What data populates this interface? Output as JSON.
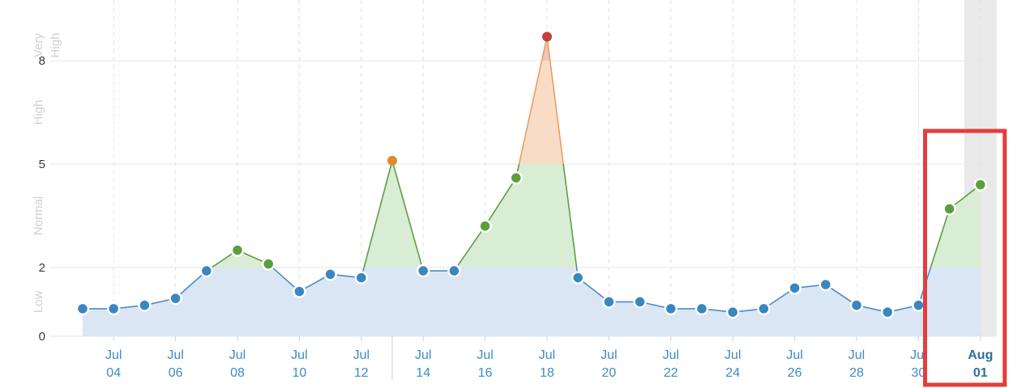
{
  "chart_data": {
    "type": "area",
    "title": "",
    "xlabel": "",
    "ylabel": "",
    "ylim": [
      0,
      9
    ],
    "yticks": [
      0,
      2,
      5,
      8
    ],
    "grid": true,
    "zones": [
      {
        "label": "Low",
        "from": 0,
        "to": 2,
        "color": "#dae6f4"
      },
      {
        "label": "Normal",
        "from": 2,
        "to": 5,
        "color": "#d9ecd4"
      },
      {
        "label": "High",
        "from": 5,
        "to": 8,
        "color": "#f8dcc6"
      },
      {
        "label": "Very High",
        "from": 8,
        "to": 9,
        "color": "#f0c2be"
      }
    ],
    "x": [
      "2021-07-03",
      "2021-07-04",
      "2021-07-05",
      "2021-07-06",
      "2021-07-07",
      "2021-07-08",
      "2021-07-09",
      "2021-07-10",
      "2021-07-11",
      "2021-07-12",
      "2021-07-13",
      "2021-07-14",
      "2021-07-15",
      "2021-07-16",
      "2021-07-17",
      "2021-07-18",
      "2021-07-19",
      "2021-07-20",
      "2021-07-21",
      "2021-07-22",
      "2021-07-23",
      "2021-07-24",
      "2021-07-25",
      "2021-07-26",
      "2021-07-27",
      "2021-07-28",
      "2021-07-29",
      "2021-07-30",
      "2021-07-31",
      "2021-08-01"
    ],
    "values": [
      0.8,
      0.8,
      0.9,
      1.1,
      1.9,
      2.5,
      2.1,
      1.3,
      1.8,
      1.7,
      5.1,
      1.9,
      1.9,
      3.2,
      4.6,
      8.7,
      1.7,
      1.0,
      1.0,
      0.8,
      0.8,
      0.7,
      0.8,
      1.4,
      1.5,
      0.9,
      0.7,
      0.9,
      3.7,
      4.4
    ],
    "xtick_labels": [
      {
        "date": "2021-07-04",
        "month": "Jul",
        "day": "04"
      },
      {
        "date": "2021-07-06",
        "month": "Jul",
        "day": "06"
      },
      {
        "date": "2021-07-08",
        "month": "Jul",
        "day": "08"
      },
      {
        "date": "2021-07-10",
        "month": "Jul",
        "day": "10"
      },
      {
        "date": "2021-07-12",
        "month": "Jul",
        "day": "12"
      },
      {
        "date": "2021-07-14",
        "month": "Jul",
        "day": "14"
      },
      {
        "date": "2021-07-16",
        "month": "Jul",
        "day": "16"
      },
      {
        "date": "2021-07-18",
        "month": "Jul",
        "day": "18"
      },
      {
        "date": "2021-07-20",
        "month": "Jul",
        "day": "20"
      },
      {
        "date": "2021-07-22",
        "month": "Jul",
        "day": "22"
      },
      {
        "date": "2021-07-24",
        "month": "Jul",
        "day": "24"
      },
      {
        "date": "2021-07-26",
        "month": "Jul",
        "day": "26"
      },
      {
        "date": "2021-07-28",
        "month": "Jul",
        "day": "28"
      },
      {
        "date": "2021-07-30",
        "month": "Jul",
        "day": "30"
      },
      {
        "date": "2021-08-01",
        "month": "Aug",
        "day": "01"
      }
    ],
    "highlighted_date": "2021-08-01",
    "highlight_start": "2021-07-31",
    "colors": {
      "low_point": "#3a86c0",
      "low_line": "#4a8cc7",
      "normal_point": "#5a9e3f",
      "normal_line": "#5d9f47",
      "high_point": "#e18a2a",
      "high_line": "#e8a060",
      "very_high_point": "#c0403a",
      "highlight_box": "#e53c3c",
      "highlight_band": "#e9e9e9"
    }
  }
}
